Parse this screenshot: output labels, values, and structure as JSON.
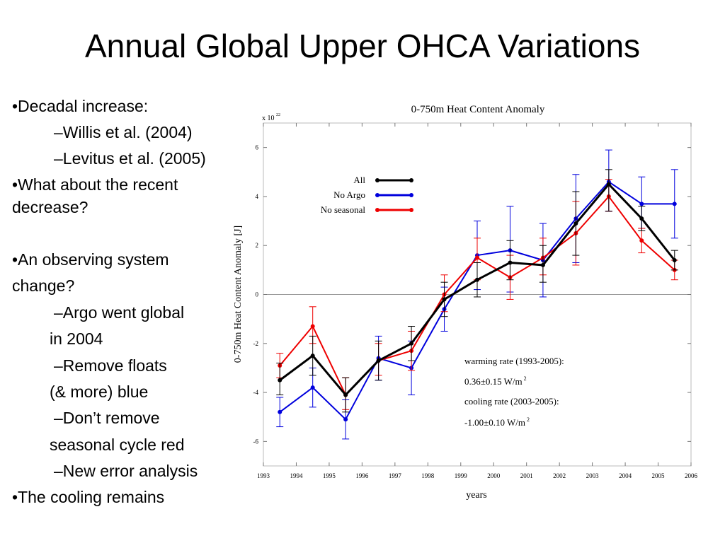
{
  "slide": {
    "title": "Annual Global Upper OHCA Variations"
  },
  "bullets": [
    "•Decadal increase:",
    "–Willis et al. (2004)",
    "–Levitus et al. (2005)",
    "•What about the recent",
    "decrease?",
    "•An observing system",
    "change?",
    "–Argo went global",
    "in 2004",
    "–Remove floats",
    "(& more) blue",
    "–Don’t remove",
    "seasonal cycle red",
    "–New error analysis",
    "•The cooling remains"
  ],
  "chart_data": {
    "type": "line",
    "title": "0-750m Heat Content Anomaly",
    "xlabel": "years",
    "ylabel": "0-750m Heat Content Anomaly [J]",
    "y_multiplier_label": "x 10",
    "y_multiplier_exp": "22",
    "xlim": [
      1993,
      2006
    ],
    "ylim": [
      -7,
      7
    ],
    "x_ticks": [
      1993,
      1994,
      1995,
      1996,
      1997,
      1998,
      1999,
      2000,
      2001,
      2002,
      2003,
      2004,
      2005,
      2006
    ],
    "y_ticks": [
      -6,
      -4,
      -2,
      0,
      2,
      4,
      6
    ],
    "x": [
      1993.5,
      1994.5,
      1995.5,
      1996.5,
      1997.5,
      1998.5,
      1999.5,
      2000.5,
      2001.5,
      2002.5,
      2003.5,
      2004.5,
      2005.5
    ],
    "legend_position": "upper-left",
    "series": [
      {
        "name": "All",
        "color": "#000000",
        "values": [
          -3.5,
          -2.5,
          -4.1,
          -2.7,
          -2.0,
          -0.2,
          0.6,
          1.3,
          1.2,
          2.9,
          4.5,
          3.1,
          1.4
        ],
        "err_lo": [
          -4.1,
          -3.3,
          -4.8,
          -3.5,
          -2.7,
          -0.9,
          -0.1,
          0.6,
          0.5,
          1.6,
          3.4,
          2.6,
          1.0
        ],
        "err_hi": [
          -2.8,
          -1.7,
          -3.4,
          -1.9,
          -1.3,
          0.5,
          1.3,
          2.2,
          2.0,
          4.2,
          5.1,
          3.6,
          1.8
        ]
      },
      {
        "name": "No Argo",
        "color": "#0000dd",
        "values": [
          -4.8,
          -3.8,
          -5.1,
          -2.6,
          -3.0,
          -0.6,
          1.6,
          1.8,
          1.4,
          3.1,
          4.6,
          3.7,
          3.7
        ],
        "err_lo": [
          -5.4,
          -4.6,
          -5.9,
          -3.5,
          -4.1,
          -1.5,
          0.2,
          0.1,
          -0.1,
          1.3,
          3.4,
          2.7,
          2.3
        ],
        "err_hi": [
          -4.2,
          -3.0,
          -4.3,
          -1.7,
          -1.9,
          0.3,
          3.0,
          3.6,
          2.9,
          4.9,
          5.9,
          4.8,
          5.1
        ]
      },
      {
        "name": "No seasonal",
        "color": "#ee0000",
        "values": [
          -2.9,
          -1.3,
          -4.1,
          -2.7,
          -2.3,
          0.0,
          1.5,
          0.7,
          1.5,
          2.5,
          4.0,
          2.2,
          1.0
        ],
        "err_lo": [
          -3.4,
          -2.0,
          -4.7,
          -3.3,
          -3.1,
          -0.7,
          0.6,
          -0.2,
          0.8,
          1.2,
          3.4,
          1.7,
          0.6
        ],
        "err_hi": [
          -2.4,
          -0.5,
          -3.4,
          -2.0,
          -1.5,
          0.8,
          2.3,
          1.6,
          2.3,
          3.8,
          4.7,
          2.7,
          1.4
        ]
      }
    ],
    "annotations": [
      "warming rate (1993-2005):",
      "0.36±0.15 W/m",
      "cooling rate (2003-2005):",
      "-1.00±0.10 W/m"
    ],
    "annotation_superscript": "2"
  }
}
